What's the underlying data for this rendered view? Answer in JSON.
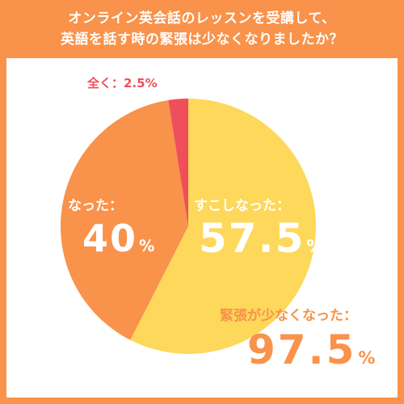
{
  "chart_data": {
    "type": "pie",
    "title_lines": [
      "オンライン英会話のレッスンを受講して、",
      "英語を話す時の緊張は少なくなりましたか？"
    ],
    "slices": [
      {
        "label": "すこしなった：",
        "value": 57.5,
        "value_text": "57.5",
        "unit": "%",
        "color": "#fdd85a"
      },
      {
        "label": "なった：",
        "value": 40,
        "value_text": "40",
        "unit": "%",
        "color": "#f9924a"
      },
      {
        "label": "全く：",
        "value": 2.5,
        "value_text": "2.5",
        "unit": "%",
        "color": "#ef4f5a"
      }
    ],
    "total": {
      "label": "緊張が少なくなった：",
      "value": 97.5,
      "value_text": "97.5",
      "unit": "%"
    },
    "colors": {
      "border": "#f9924a",
      "text_accent": "#ef4f5a",
      "label_text": "#ffffff"
    }
  }
}
